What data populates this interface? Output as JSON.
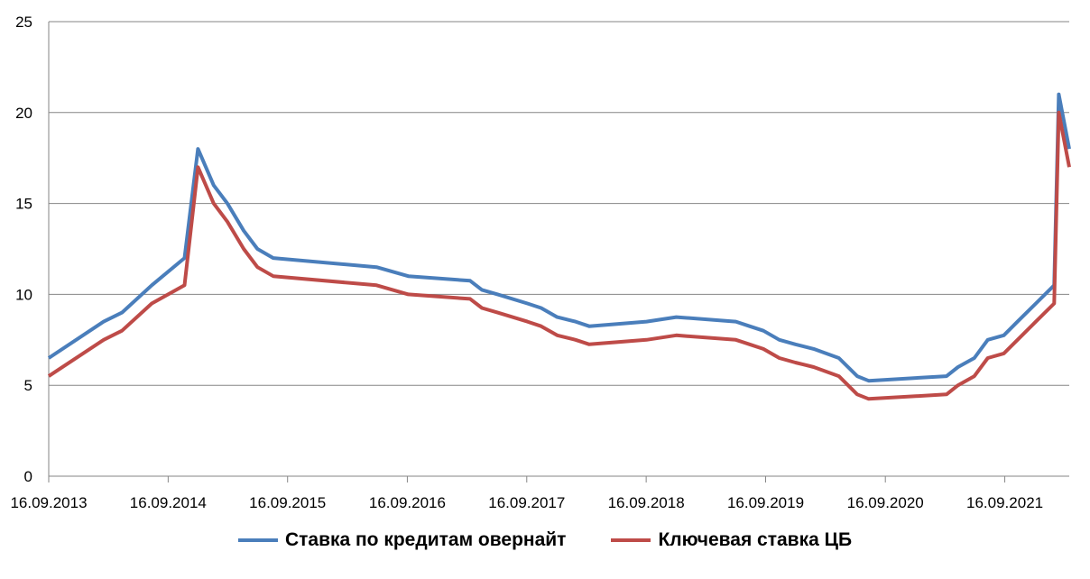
{
  "chart_data": {
    "type": "line",
    "xaxis_type": "date",
    "x_tick_labels": [
      "16.09.2013",
      "16.09.2014",
      "16.09.2015",
      "16.09.2016",
      "16.09.2017",
      "16.09.2018",
      "16.09.2019",
      "16.09.2020",
      "16.09.2021"
    ],
    "x_tick_dates": [
      "2013-09-16",
      "2014-09-16",
      "2015-09-16",
      "2016-09-16",
      "2017-09-16",
      "2018-09-16",
      "2019-09-16",
      "2020-09-16",
      "2021-09-16"
    ],
    "xlim": [
      "2013-09-16",
      "2022-04-01"
    ],
    "y_tick_labels": [
      "0",
      "5",
      "10",
      "15",
      "20",
      "25"
    ],
    "ylim": [
      0,
      25
    ],
    "grid": "horizontal",
    "legend_position": "bottom",
    "series": [
      {
        "name": "Ставка по кредитам овернайт",
        "color": "#4a7ebb",
        "points": [
          [
            "2013-09-16",
            6.5
          ],
          [
            "2014-03-03",
            8.5
          ],
          [
            "2014-04-28",
            9.0
          ],
          [
            "2014-07-28",
            10.5
          ],
          [
            "2014-11-05",
            12.0
          ],
          [
            "2014-12-16",
            18.0
          ],
          [
            "2015-02-02",
            16.0
          ],
          [
            "2015-03-16",
            15.0
          ],
          [
            "2015-05-05",
            13.5
          ],
          [
            "2015-06-16",
            12.5
          ],
          [
            "2015-08-03",
            12.0
          ],
          [
            "2016-06-14",
            11.5
          ],
          [
            "2016-09-19",
            11.0
          ],
          [
            "2017-03-27",
            10.75
          ],
          [
            "2017-05-02",
            10.25
          ],
          [
            "2017-06-19",
            10.0
          ],
          [
            "2017-09-18",
            9.5
          ],
          [
            "2017-10-30",
            9.25
          ],
          [
            "2017-12-18",
            8.75
          ],
          [
            "2018-02-12",
            8.5
          ],
          [
            "2018-03-26",
            8.25
          ],
          [
            "2018-09-17",
            8.5
          ],
          [
            "2018-12-17",
            8.75
          ],
          [
            "2019-06-17",
            8.5
          ],
          [
            "2019-07-29",
            8.25
          ],
          [
            "2019-09-09",
            8.0
          ],
          [
            "2019-10-28",
            7.5
          ],
          [
            "2019-12-16",
            7.25
          ],
          [
            "2020-02-10",
            7.0
          ],
          [
            "2020-04-27",
            6.5
          ],
          [
            "2020-06-22",
            5.5
          ],
          [
            "2020-07-27",
            5.25
          ],
          [
            "2021-03-22",
            5.5
          ],
          [
            "2021-04-26",
            6.0
          ],
          [
            "2021-06-15",
            6.5
          ],
          [
            "2021-07-26",
            7.5
          ],
          [
            "2021-09-13",
            7.75
          ],
          [
            "2021-10-25",
            8.5
          ],
          [
            "2021-12-20",
            9.5
          ],
          [
            "2022-02-14",
            10.5
          ],
          [
            "2022-02-28",
            21.0
          ],
          [
            "2022-04-01",
            18.0
          ]
        ]
      },
      {
        "name": "Ключевая ставка ЦБ",
        "color": "#be4b48",
        "points": [
          [
            "2013-09-16",
            5.5
          ],
          [
            "2014-03-03",
            7.5
          ],
          [
            "2014-04-28",
            8.0
          ],
          [
            "2014-07-28",
            9.5
          ],
          [
            "2014-11-05",
            10.5
          ],
          [
            "2014-12-16",
            17.0
          ],
          [
            "2015-02-02",
            15.0
          ],
          [
            "2015-03-16",
            14.0
          ],
          [
            "2015-05-05",
            12.5
          ],
          [
            "2015-06-16",
            11.5
          ],
          [
            "2015-08-03",
            11.0
          ],
          [
            "2016-06-14",
            10.5
          ],
          [
            "2016-09-19",
            10.0
          ],
          [
            "2017-03-27",
            9.75
          ],
          [
            "2017-05-02",
            9.25
          ],
          [
            "2017-06-19",
            9.0
          ],
          [
            "2017-09-18",
            8.5
          ],
          [
            "2017-10-30",
            8.25
          ],
          [
            "2017-12-18",
            7.75
          ],
          [
            "2018-02-12",
            7.5
          ],
          [
            "2018-03-26",
            7.25
          ],
          [
            "2018-09-17",
            7.5
          ],
          [
            "2018-12-17",
            7.75
          ],
          [
            "2019-06-17",
            7.5
          ],
          [
            "2019-07-29",
            7.25
          ],
          [
            "2019-09-09",
            7.0
          ],
          [
            "2019-10-28",
            6.5
          ],
          [
            "2019-12-16",
            6.25
          ],
          [
            "2020-02-10",
            6.0
          ],
          [
            "2020-04-27",
            5.5
          ],
          [
            "2020-06-22",
            4.5
          ],
          [
            "2020-07-27",
            4.25
          ],
          [
            "2021-03-22",
            4.5
          ],
          [
            "2021-04-26",
            5.0
          ],
          [
            "2021-06-15",
            5.5
          ],
          [
            "2021-07-26",
            6.5
          ],
          [
            "2021-09-13",
            6.75
          ],
          [
            "2021-10-25",
            7.5
          ],
          [
            "2021-12-20",
            8.5
          ],
          [
            "2022-02-14",
            9.5
          ],
          [
            "2022-02-28",
            20.0
          ],
          [
            "2022-04-01",
            17.0
          ]
        ]
      }
    ]
  }
}
